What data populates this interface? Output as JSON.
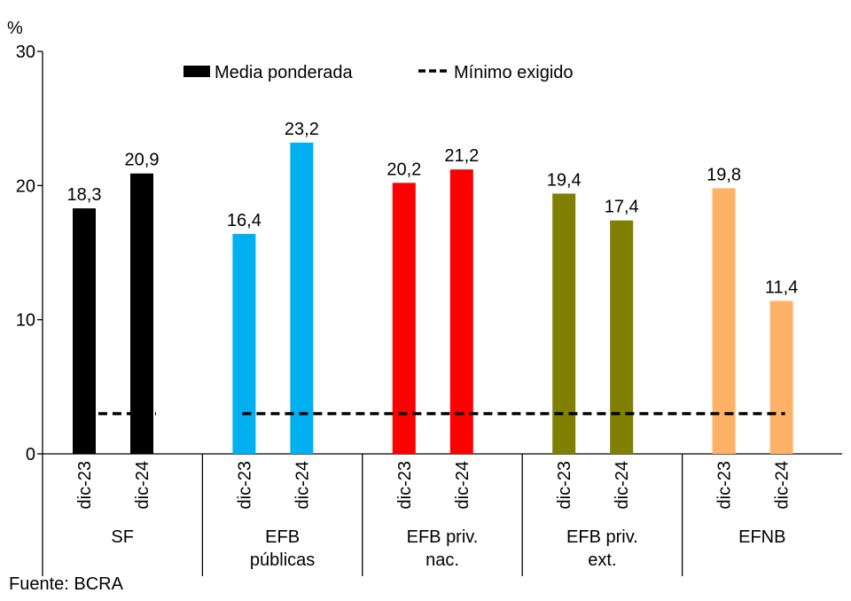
{
  "source": "Fuente: BCRA",
  "chart_data": {
    "type": "bar",
    "unit_label": "%",
    "ylim": [
      0,
      30
    ],
    "yticks": [
      0,
      10,
      20,
      30
    ],
    "grid": false,
    "legend_position": "top",
    "legend": {
      "bar_label": "Media ponderada",
      "line_label": "Mínimo exigido"
    },
    "groups": [
      {
        "label_lines": [
          "SF"
        ],
        "color": "#000000",
        "bars": [
          {
            "period": "dic-23",
            "value": 18.3,
            "label": "18,3"
          },
          {
            "period": "dic-24",
            "value": 20.9,
            "label": "20,9"
          }
        ]
      },
      {
        "label_lines": [
          "EFB",
          "públicas"
        ],
        "color": "#00B0F0",
        "bars": [
          {
            "period": "dic-23",
            "value": 16.4,
            "label": "16,4"
          },
          {
            "period": "dic-24",
            "value": 23.2,
            "label": "23,2"
          }
        ]
      },
      {
        "label_lines": [
          "EFB priv.",
          "nac."
        ],
        "color": "#FF0000",
        "bars": [
          {
            "period": "dic-23",
            "value": 20.2,
            "label": "20,2"
          },
          {
            "period": "dic-24",
            "value": 21.2,
            "label": "21,2"
          }
        ]
      },
      {
        "label_lines": [
          "EFB priv.",
          "ext."
        ],
        "color": "#7F7F00",
        "bars": [
          {
            "period": "dic-23",
            "value": 19.4,
            "label": "19,4"
          },
          {
            "period": "dic-24",
            "value": 17.4,
            "label": "17,4"
          }
        ]
      },
      {
        "label_lines": [
          "EFNB"
        ],
        "color": "#FFB266",
        "bars": [
          {
            "period": "dic-23",
            "value": 19.8,
            "label": "19,8"
          },
          {
            "period": "dic-24",
            "value": 11.4,
            "label": "11,4"
          }
        ]
      }
    ],
    "minimum_required": {
      "value": 3,
      "color": "#000000",
      "style": "dashed"
    }
  }
}
